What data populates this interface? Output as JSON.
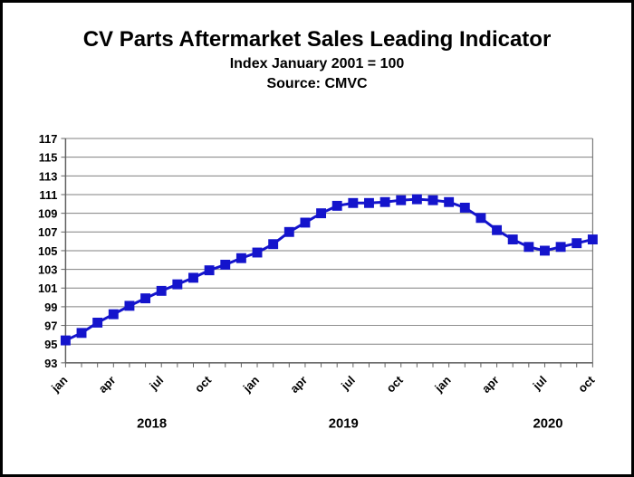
{
  "header": {
    "title": "CV Parts Aftermarket Sales Leading Indicator",
    "subtitle": "Index January 2001 = 100",
    "source": "Source: CMVC"
  },
  "chart_data": {
    "type": "line",
    "title": "CV Parts Aftermarket Sales Leading Indicator",
    "subtitle": "Index January 2001 = 100",
    "source": "Source: CMVC",
    "ylim": [
      93,
      117
    ],
    "ytick_step": 2,
    "grid": true,
    "legend_position": "none",
    "marker": "square",
    "line_color": "#1414cc",
    "grid_color": "#808080",
    "axis_color": "#606060",
    "text_color": "#000000",
    "x_range": "Jan 2018 - Oct 2020 (monthly)",
    "month_tick_labels": [
      "jan",
      "apr",
      "jul",
      "oct",
      "jan",
      "apr",
      "jul",
      "oct",
      "jan",
      "apr",
      "jul",
      "oct"
    ],
    "year_labels": [
      "2018",
      "2019",
      "2020"
    ],
    "series": [
      {
        "name": "CV Parts Aftermarket Sales Leading Indicator",
        "values": [
          95.4,
          96.2,
          97.3,
          98.2,
          99.1,
          99.9,
          100.7,
          101.4,
          102.1,
          102.9,
          103.5,
          104.2,
          104.8,
          105.7,
          107.0,
          108.0,
          109.0,
          109.8,
          110.1,
          110.1,
          110.2,
          110.4,
          110.5,
          110.4,
          110.2,
          109.6,
          108.5,
          107.2,
          106.2,
          105.4,
          105.0,
          105.4,
          105.8,
          106.2
        ]
      }
    ]
  }
}
